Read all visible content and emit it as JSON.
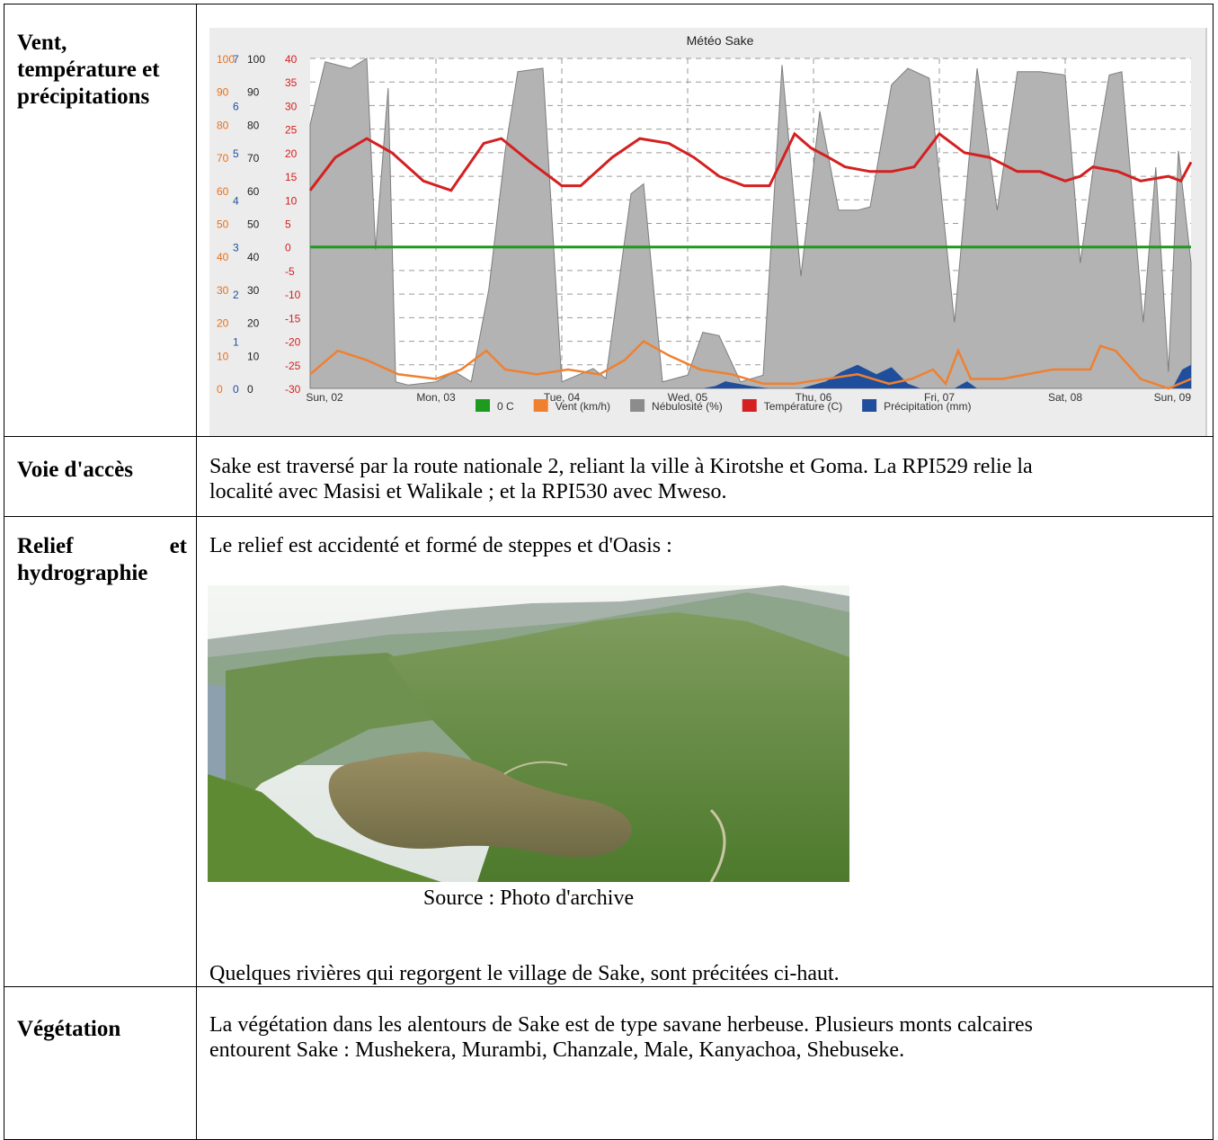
{
  "rows": {
    "climate": {
      "label": "Vent, température et précipitations"
    },
    "access": {
      "label": "Voie d'accès",
      "text": "Sake est traversé par la route nationale 2, reliant la ville à Kirotshe et Goma. La RPI529 relie la localité avec Masisi et Walikale ; et la RPI530 avec Mweso."
    },
    "relief": {
      "label": "Relief et hydrographie",
      "intro": "Le relief est accidenté et formé de steppes et d'Oasis :",
      "caption": "Source : Photo d'archive",
      "outro": "Quelques rivières qui regorgent le village de Sake, sont précitées ci-haut."
    },
    "vegetation": {
      "label": "Végétation",
      "text": "La végétation dans les alentours de Sake est de type savane herbeuse. Plusieurs monts calcaires entourent Sake : Mushekera, Murambi, Chanzale, Male, Kanyachoa, Shebuseke."
    }
  },
  "photo": {
    "icon": "landscape-photo-lake-hills"
  },
  "chart_data": {
    "type": "area",
    "title": "Météo Sake",
    "x_labels": [
      "Sun, 02",
      "Mon, 03",
      "Tue, 04",
      "Wed, 05",
      "Thu, 06",
      "Fri, 07",
      "Sat, 08",
      "Sun, 09"
    ],
    "x_range_days": [
      0,
      7
    ],
    "axes": [
      {
        "name": "humidity-pct",
        "color": "#e8701a",
        "ticks": [
          "100",
          "90",
          "80",
          "70",
          "60",
          "50",
          "40",
          "30",
          "20",
          "10",
          "0"
        ],
        "range": [
          0,
          100
        ]
      },
      {
        "name": "precip-mm",
        "color": "#1f4f9c",
        "ticks": [
          "7",
          "6",
          "5",
          "4",
          "3",
          "2",
          "1",
          "0"
        ],
        "range": [
          0,
          7
        ]
      },
      {
        "name": "nebulosite-pct",
        "color": "#222222",
        "ticks": [
          "100",
          "90",
          "80",
          "70",
          "60",
          "50",
          "40",
          "30",
          "20",
          "10",
          "0"
        ],
        "range": [
          0,
          100
        ]
      },
      {
        "name": "temperature-c",
        "color": "#d42020",
        "ticks": [
          "40",
          "35",
          "30",
          "25",
          "20",
          "15",
          "10",
          "5",
          "0",
          "-5",
          "-10",
          "-15",
          "-20",
          "-25",
          "-30"
        ],
        "range": [
          -30,
          40
        ]
      }
    ],
    "legend": [
      "0 C",
      "Vent (km/h)",
      "Nébulosité (%)",
      "Température (C)",
      "Précipitation (mm)"
    ],
    "legend_colors": [
      "#1e9a1e",
      "#f08030",
      "#8c8c8c",
      "#d42020",
      "#1f4f9c"
    ],
    "legend_position": "bottom",
    "grid": true,
    "series": [
      {
        "name": "Nébulosité (%)",
        "x": [
          0.0,
          0.12,
          0.32,
          0.45,
          0.52,
          0.62,
          0.68,
          0.78,
          1.0,
          1.15,
          1.28,
          1.42,
          1.55,
          1.65,
          1.85,
          2.0,
          2.25,
          2.35,
          2.55,
          2.65,
          2.8,
          3.0,
          3.12,
          3.25,
          3.42,
          3.6,
          3.75,
          3.9,
          4.05,
          4.2,
          4.35,
          4.45,
          4.62,
          4.75,
          4.92,
          5.12,
          5.3,
          5.46,
          5.62,
          5.8,
          6.0,
          6.12,
          6.22,
          6.35,
          6.45,
          6.62,
          6.72,
          6.82,
          6.9,
          7.0
        ],
        "values": [
          80,
          99,
          97,
          100,
          42,
          91,
          2,
          1,
          2,
          5,
          2,
          30,
          72,
          96,
          97,
          2,
          6,
          3,
          59,
          62,
          2,
          4,
          17,
          16,
          2,
          4,
          98,
          34,
          84,
          54,
          54,
          55,
          92,
          97,
          94,
          20,
          97,
          54,
          96,
          96,
          95,
          38,
          66,
          95,
          96,
          20,
          67,
          5,
          72,
          38
        ],
        "color": "#b3b3b3"
      },
      {
        "name": "Température (C)",
        "x": [
          0.0,
          0.2,
          0.45,
          0.65,
          0.9,
          1.12,
          1.38,
          1.52,
          1.75,
          2.0,
          2.15,
          2.4,
          2.62,
          2.85,
          3.05,
          3.25,
          3.45,
          3.65,
          3.85,
          3.98,
          4.12,
          4.25,
          4.45,
          4.62,
          4.8,
          5.0,
          5.2,
          5.4,
          5.62,
          5.8,
          6.0,
          6.12,
          6.22,
          6.42,
          6.6,
          6.82,
          6.92,
          7.0
        ],
        "values": [
          12,
          19,
          23,
          20,
          14,
          12,
          22,
          23,
          18,
          13,
          13,
          19,
          23,
          22,
          19,
          15,
          13,
          13,
          24,
          21,
          19,
          17,
          16,
          16,
          17,
          24,
          20,
          19,
          16,
          16,
          14,
          15,
          17,
          16,
          14,
          15,
          14,
          18
        ],
        "color": "#d42020"
      },
      {
        "name": "Vent (km/h)",
        "x": [
          0.0,
          0.22,
          0.45,
          0.7,
          1.0,
          1.2,
          1.4,
          1.55,
          1.8,
          2.05,
          2.3,
          2.5,
          2.65,
          2.85,
          3.1,
          3.35,
          3.6,
          3.85,
          4.1,
          4.35,
          4.6,
          4.78,
          4.95,
          5.05,
          5.15,
          5.25,
          5.5,
          5.9,
          6.2,
          6.28,
          6.4,
          6.6,
          6.82,
          7.0
        ],
        "values": [
          -27,
          -22,
          -24,
          -27,
          -28,
          -26,
          -22,
          -26,
          -27,
          -26,
          -27,
          -24,
          -20,
          -23,
          -26,
          -27,
          -29,
          -29,
          -28,
          -27,
          -29,
          -28,
          -26,
          -29,
          -22,
          -28,
          -28,
          -26,
          -26,
          -21,
          -22,
          -28,
          -30,
          -28
        ],
        "color": "#f08030"
      },
      {
        "name": "Précipitation (mm)",
        "x": [
          0.0,
          3.0,
          3.12,
          3.22,
          3.3,
          3.5,
          3.65,
          3.7,
          3.9,
          4.1,
          4.22,
          4.35,
          4.5,
          4.62,
          4.75,
          4.85,
          4.95,
          5.05,
          5.12,
          5.22,
          5.3,
          6.72,
          6.85,
          6.93,
          7.0
        ],
        "values": [
          0,
          0,
          0,
          0.05,
          0.15,
          0.05,
          0,
          0,
          0,
          0.15,
          0.35,
          0.5,
          0.3,
          0.45,
          0.1,
          0,
          0,
          0,
          0,
          0.15,
          0,
          0,
          0,
          0.4,
          0.5
        ],
        "color": "#1f4f9c"
      },
      {
        "name": "0 C",
        "x": [
          0,
          7
        ],
        "values": [
          0,
          0
        ],
        "color": "#1e9a1e"
      }
    ]
  }
}
